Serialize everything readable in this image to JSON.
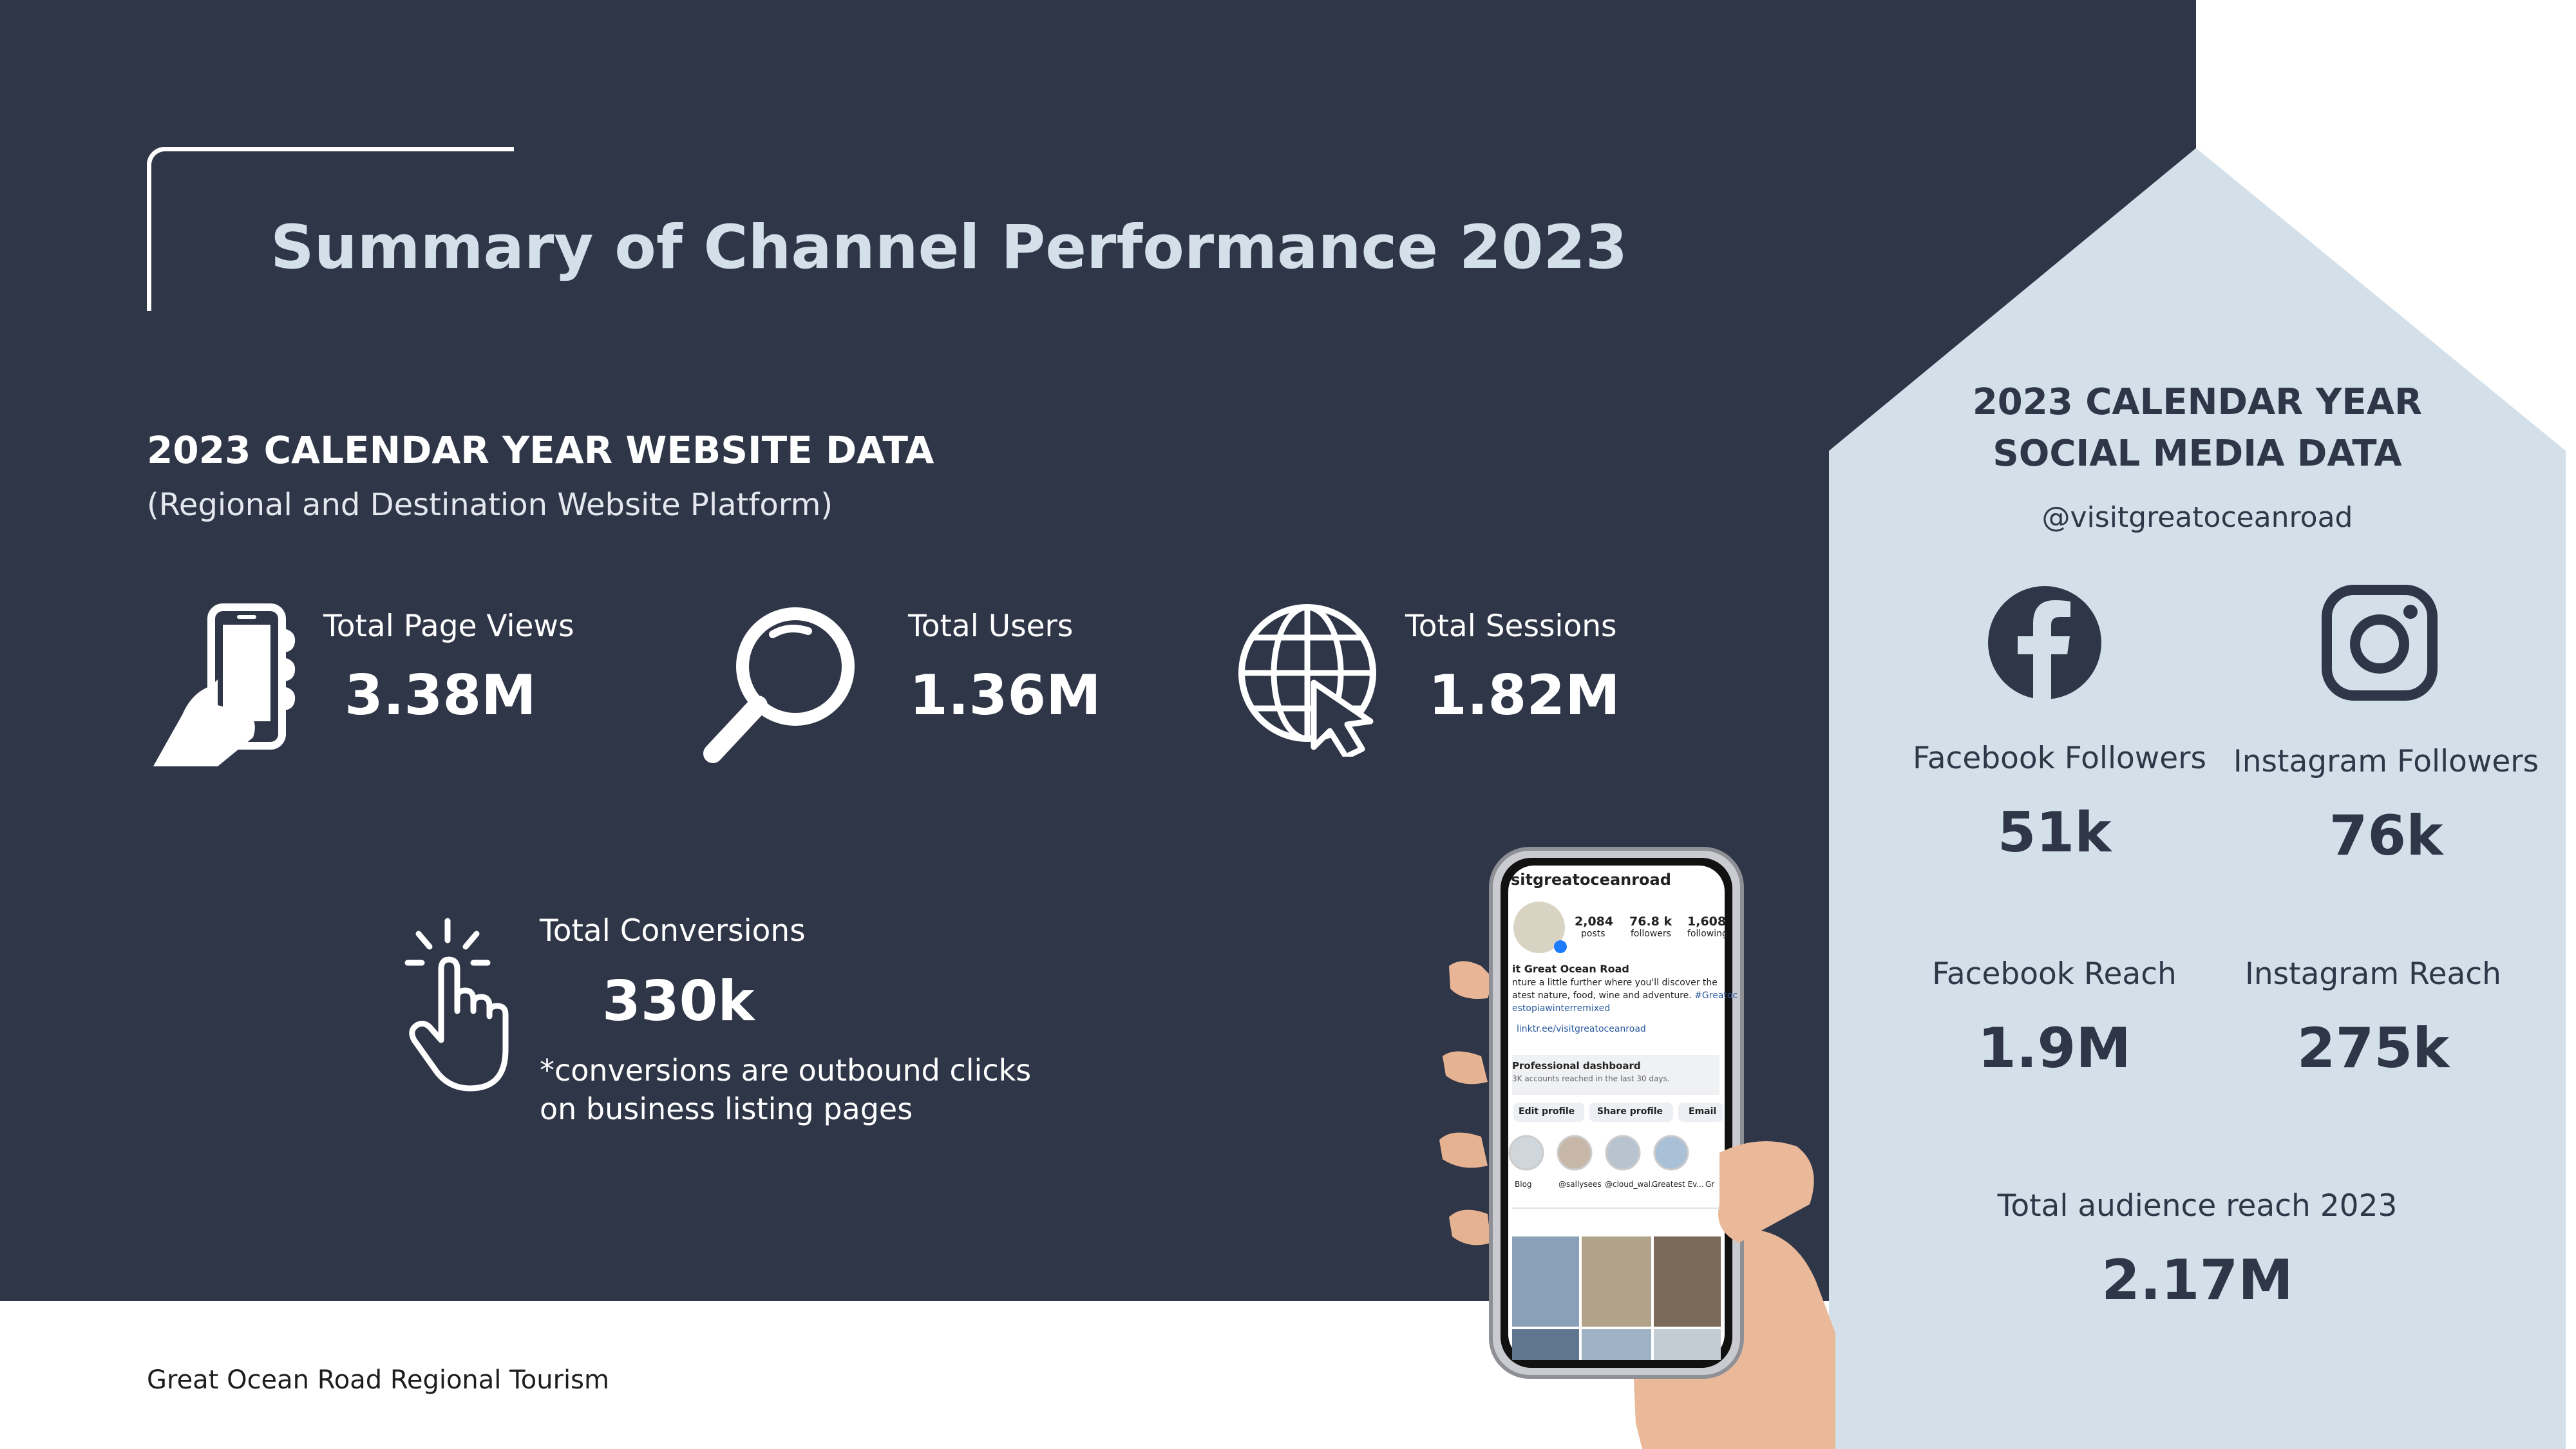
{
  "title": "Summary of Channel Performance 2023",
  "website": {
    "heading": "2023 CALENDAR YEAR WEBSITE DATA",
    "subheading": "(Regional and Destination Website Platform)",
    "stats": [
      {
        "label": "Total Page Views",
        "value": "3.38M",
        "icon": "hand-phone-icon"
      },
      {
        "label": "Total Users",
        "value": "1.36M",
        "icon": "magnifier-icon"
      },
      {
        "label": "Total Sessions",
        "value": "1.82M",
        "icon": "globe-cursor-icon"
      }
    ],
    "conversions": {
      "label": "Total Conversions",
      "value": "330k",
      "note_line1": "*conversions are outbound clicks",
      "note_line2": "on business listing pages",
      "icon": "tap-hand-icon"
    }
  },
  "social": {
    "heading_line1": "2023 CALENDAR YEAR",
    "heading_line2": "SOCIAL MEDIA DATA",
    "handle": "@visitgreatoceanroad",
    "facebook_followers_label": "Facebook Followers",
    "facebook_followers_value": "51k",
    "instagram_followers_label": "Instagram Followers",
    "instagram_followers_value": "76k",
    "facebook_reach_label": "Facebook Reach",
    "facebook_reach_value": "1.9M",
    "instagram_reach_label": "Instagram Reach",
    "instagram_reach_value": "275k",
    "total_label": "Total audience reach 2023",
    "total_value": "2.17M"
  },
  "phone": {
    "username": "sitgreatoceanroad",
    "posts_count": "2,084",
    "posts_label": "posts",
    "followers_count": "76.8 k",
    "followers_label": "followers",
    "following_count": "1,608",
    "following_label": "following",
    "profile_name": "it Great Ocean Road",
    "bio_line1": "nture a little further where you'll discover the",
    "bio_line2": "atest nature, food, wine and adventure.",
    "bio_tag": "#Greatoc",
    "bio_line3": "estopiawinterremixed",
    "link": "linktr.ee/visitgreatoceanroad",
    "dashboard": "Professional dashboard",
    "dashboard_sub": "3K accounts reached in the last 30 days.",
    "btn_edit": "Edit profile",
    "btn_share": "Share profile",
    "btn_email": "Email",
    "highlights": [
      "Blog",
      "@sallysees",
      "@cloud_wal...",
      "Greatest Ev...",
      "Gr"
    ]
  },
  "footer": "Great Ocean Road Regional Tourism",
  "colors": {
    "dark": "#2f3648",
    "light_panel": "#d3e0e9",
    "white": "#ffffff"
  }
}
